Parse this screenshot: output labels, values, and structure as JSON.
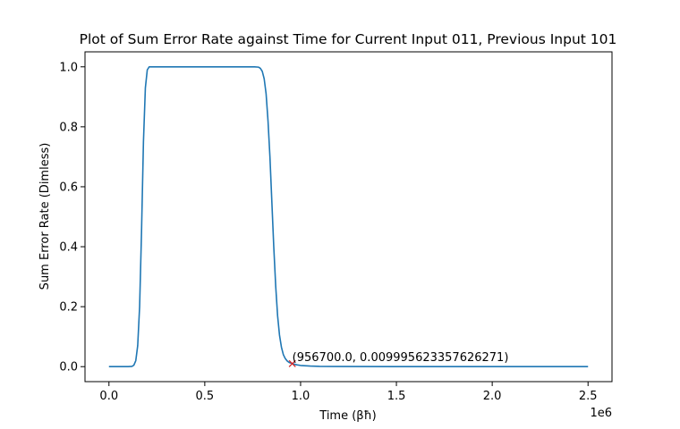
{
  "chart_data": {
    "type": "line",
    "title": "Plot of Sum Error Rate against Time for Current Input 011, Previous Input 101",
    "xlabel": "Time (βħ)",
    "ylabel": "Sum Error Rate (Dimless)",
    "x_offset_text": "1e6",
    "xlim": [
      -125000,
      2625000
    ],
    "ylim": [
      -0.05,
      1.05
    ],
    "x_ticks": [
      0,
      500000,
      1000000,
      1500000,
      2000000,
      2500000
    ],
    "x_tick_labels": [
      "0.0",
      "0.5",
      "1.0",
      "1.5",
      "2.0",
      "2.5"
    ],
    "y_ticks": [
      0.0,
      0.2,
      0.4,
      0.6,
      0.8,
      1.0
    ],
    "y_tick_labels": [
      "0.0",
      "0.2",
      "0.4",
      "0.6",
      "0.8",
      "1.0"
    ],
    "grid": false,
    "line_color": "#1f77b4",
    "marker_color": "#d62728",
    "series": [
      {
        "x": [
          0,
          50000,
          100000,
          120000,
          130000,
          140000,
          150000,
          160000,
          170000,
          180000,
          190000,
          200000,
          210000,
          230000,
          300000,
          500000,
          700000,
          760000,
          780000,
          790000,
          800000,
          810000,
          820000,
          830000,
          840000,
          850000,
          860000,
          870000,
          880000,
          890000,
          900000,
          910000,
          920000,
          930000,
          940000,
          956700,
          980000,
          1000000,
          1050000,
          1100000,
          1200000,
          1500000,
          2000000,
          2500000
        ],
        "y": [
          0.0,
          0.0,
          0.0,
          0.001,
          0.005,
          0.02,
          0.07,
          0.2,
          0.45,
          0.75,
          0.93,
          0.99,
          1.0,
          1.0,
          1.0,
          1.0,
          1.0,
          1.0,
          0.999,
          0.995,
          0.985,
          0.96,
          0.91,
          0.82,
          0.7,
          0.55,
          0.4,
          0.27,
          0.17,
          0.105,
          0.065,
          0.04,
          0.027,
          0.019,
          0.014,
          0.009995623357626271,
          0.006,
          0.004,
          0.002,
          0.001,
          0.0005,
          0.0,
          0.0,
          0.0
        ]
      }
    ],
    "annotation": {
      "x": 956700.0,
      "y": 0.009995623357626271,
      "text": "(956700.0, 0.009995623357626271)",
      "marker": "x"
    }
  }
}
